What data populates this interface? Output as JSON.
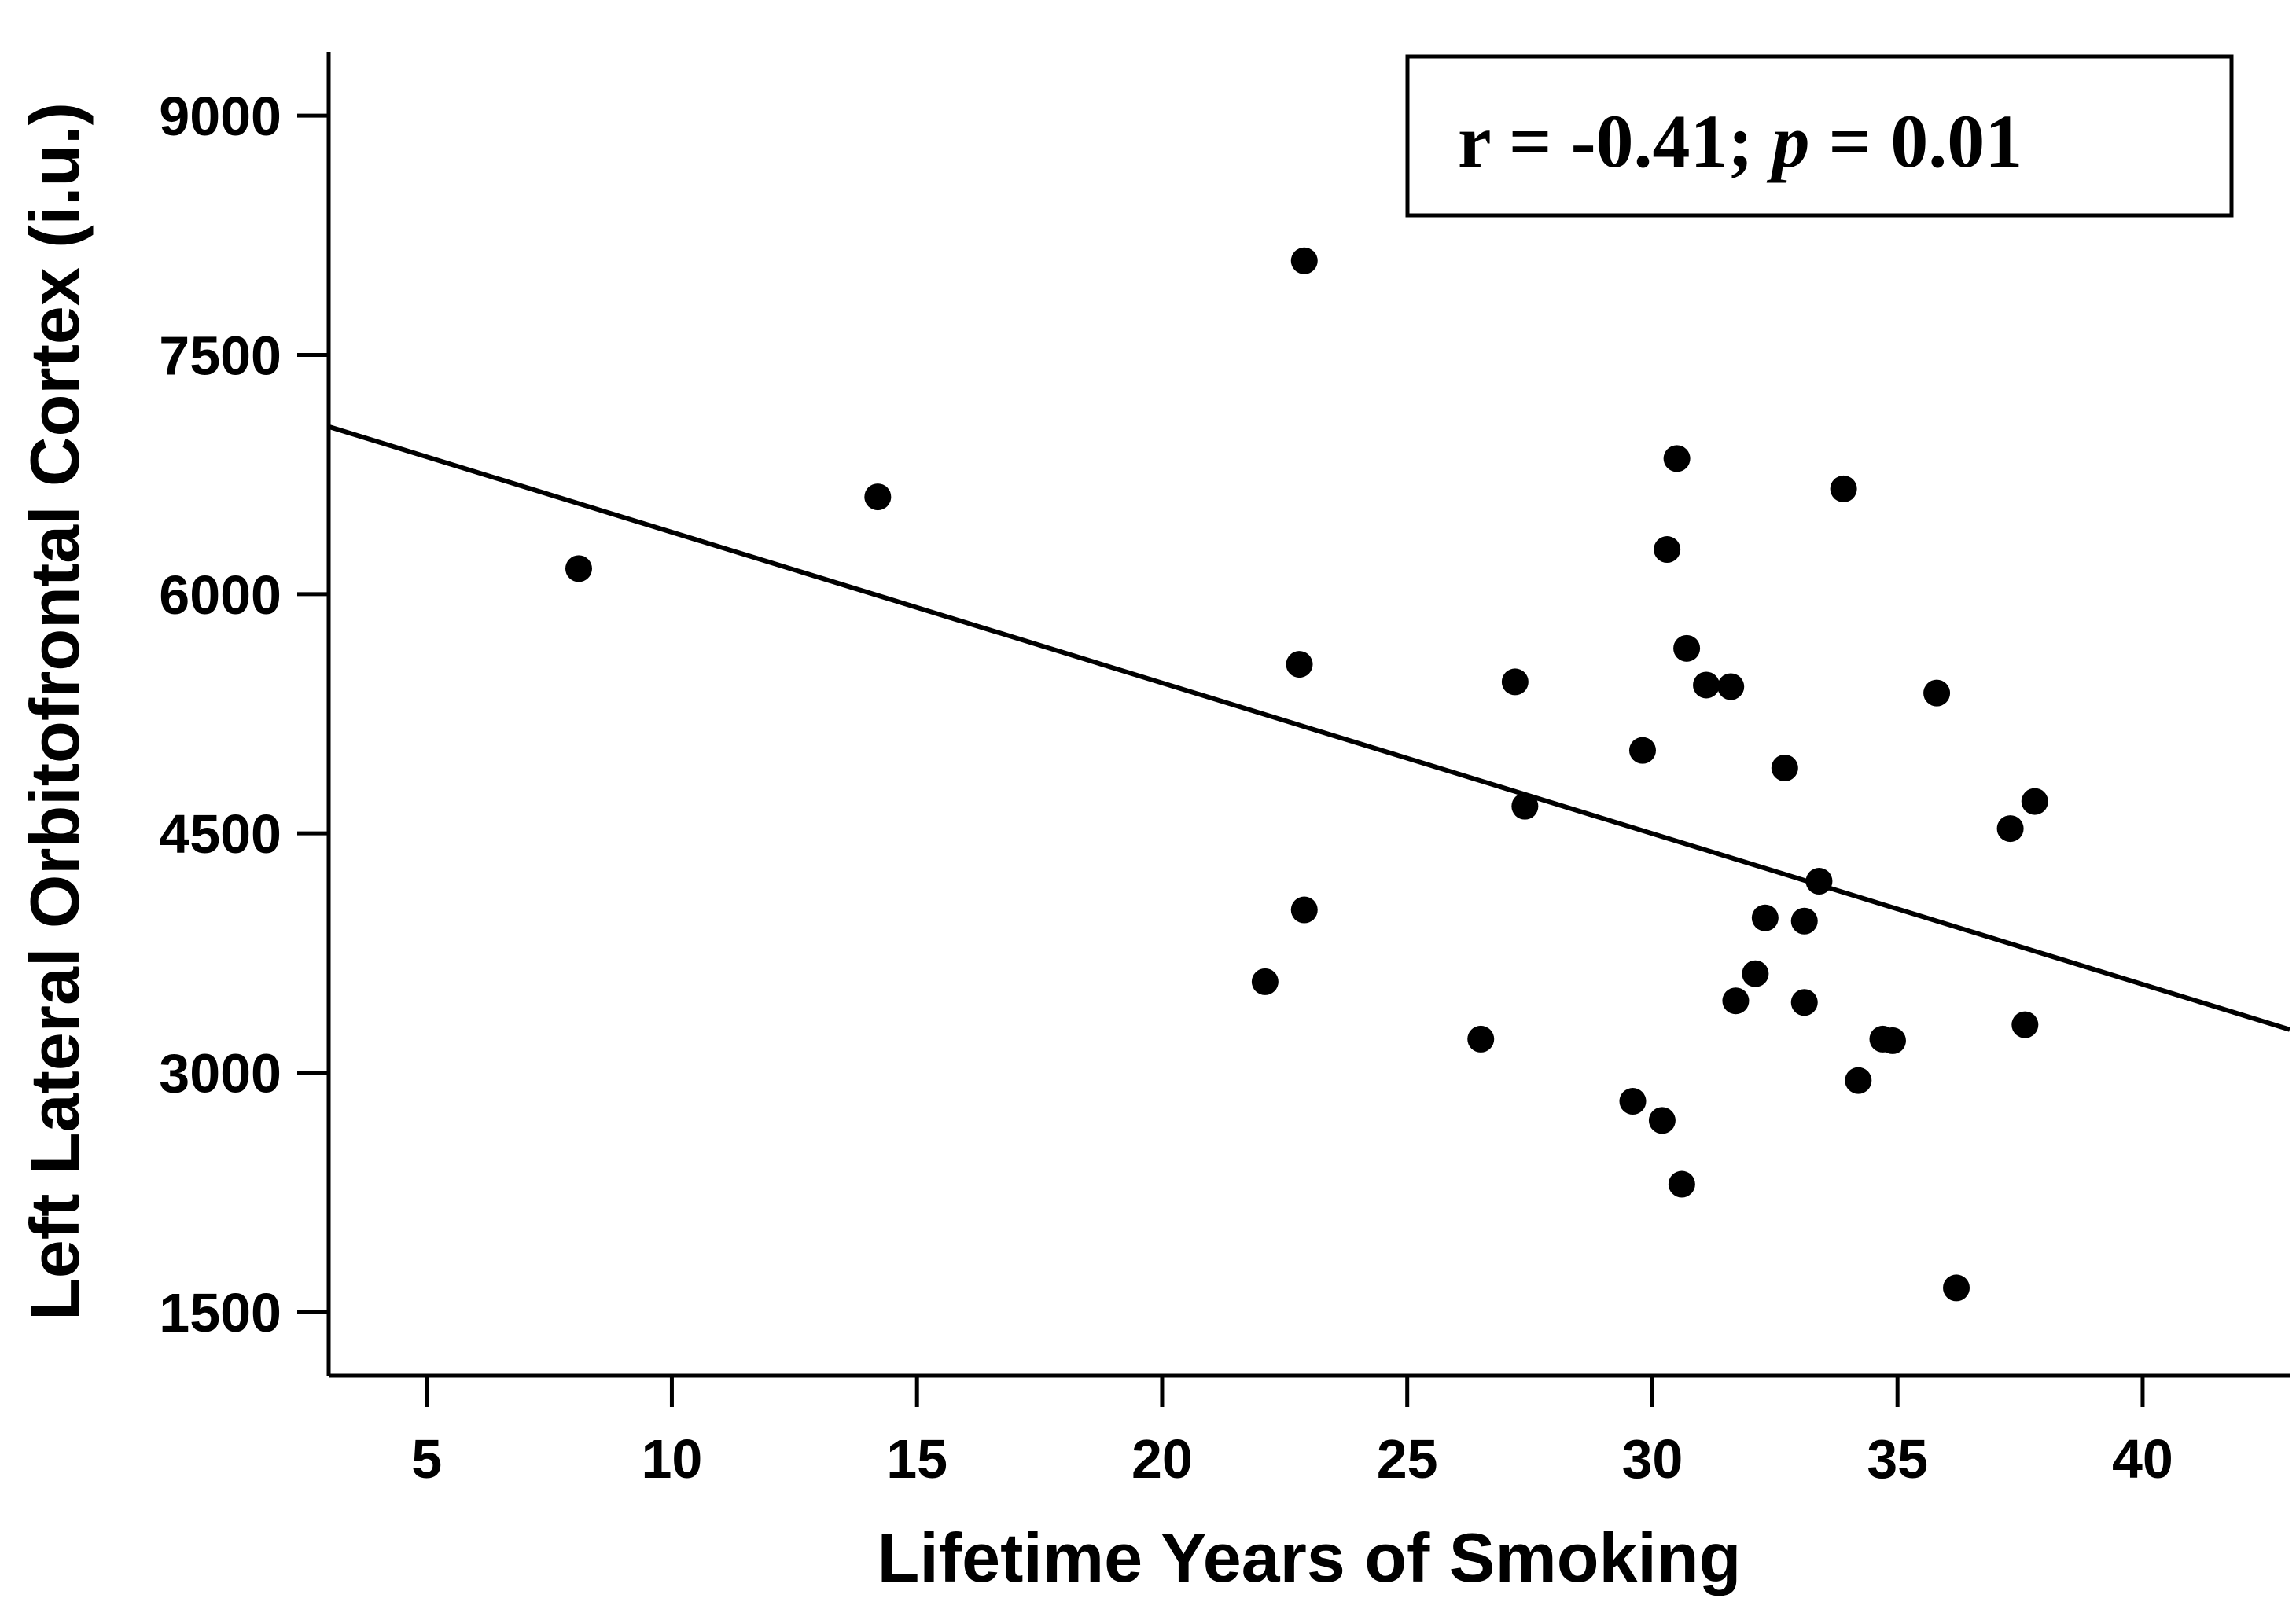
{
  "chart_data": {
    "type": "scatter",
    "title": "",
    "xlabel": "Lifetime Years of Smoking",
    "ylabel": "Left Lateral Orbitofrontal Cortex (i.u.)",
    "xlim": [
      3,
      43
    ],
    "ylim": [
      1100,
      9400
    ],
    "xticks": [
      5,
      10,
      15,
      20,
      25,
      30,
      35,
      40
    ],
    "yticks": [
      1500,
      3000,
      4500,
      6000,
      7500,
      9000
    ],
    "grid": false,
    "annotation": {
      "r_text": "r = -0.41; ",
      "p_symbol": "p",
      "p_text": " = 0.01",
      "placement": "top-right"
    },
    "regression_line": {
      "x": [
        3,
        43
      ],
      "y": [
        7050,
        3270
      ]
    },
    "points": [
      {
        "x": 8.1,
        "y": 6160
      },
      {
        "x": 14.2,
        "y": 6610
      },
      {
        "x": 22.1,
        "y": 3570
      },
      {
        "x": 22.8,
        "y": 5560
      },
      {
        "x": 22.9,
        "y": 4020
      },
      {
        "x": 22.9,
        "y": 8090
      },
      {
        "x": 26.5,
        "y": 3210
      },
      {
        "x": 27.2,
        "y": 5450
      },
      {
        "x": 27.4,
        "y": 4670
      },
      {
        "x": 29.6,
        "y": 2820
      },
      {
        "x": 29.8,
        "y": 5020
      },
      {
        "x": 30.2,
        "y": 2700
      },
      {
        "x": 30.3,
        "y": 6280
      },
      {
        "x": 30.5,
        "y": 6850
      },
      {
        "x": 30.6,
        "y": 2300
      },
      {
        "x": 30.7,
        "y": 5660
      },
      {
        "x": 31.1,
        "y": 5430
      },
      {
        "x": 31.6,
        "y": 5420
      },
      {
        "x": 31.7,
        "y": 3450
      },
      {
        "x": 32.1,
        "y": 3620
      },
      {
        "x": 32.3,
        "y": 3970
      },
      {
        "x": 32.7,
        "y": 4910
      },
      {
        "x": 33.1,
        "y": 3440
      },
      {
        "x": 33.1,
        "y": 3950
      },
      {
        "x": 33.4,
        "y": 4200
      },
      {
        "x": 33.9,
        "y": 6660
      },
      {
        "x": 34.2,
        "y": 2950
      },
      {
        "x": 34.7,
        "y": 3210
      },
      {
        "x": 34.9,
        "y": 3200
      },
      {
        "x": 35.8,
        "y": 5380
      },
      {
        "x": 36.2,
        "y": 1650
      },
      {
        "x": 37.3,
        "y": 4530
      },
      {
        "x": 37.6,
        "y": 3300
      },
      {
        "x": 37.8,
        "y": 4700
      }
    ]
  }
}
